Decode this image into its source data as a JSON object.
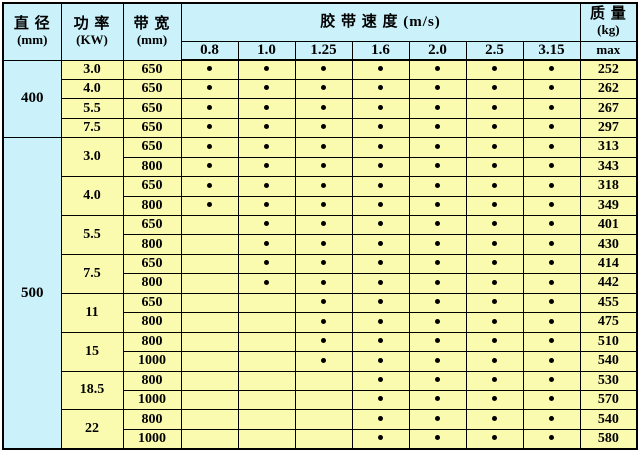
{
  "table": {
    "headers": {
      "diameter": {
        "line1": "直 径",
        "line2": "(mm)"
      },
      "power": {
        "line1": "功 率",
        "line2": "(KW)"
      },
      "belt_width": {
        "line1": "带 宽",
        "line2": "(mm)"
      },
      "speed_title": "胶 带 速 度 (m/s)",
      "speeds": [
        "0.8",
        "1.0",
        "1.25",
        "1.6",
        "2.0",
        "2.5",
        "3.15"
      ],
      "mass": {
        "line1": "质 量",
        "line2": "(kg)",
        "line3": "max"
      }
    },
    "colors": {
      "header_bg": "#cbf2fa",
      "row_bg": "#fbfbb0",
      "border": "#000000",
      "dot": "#000000"
    },
    "groups": [
      {
        "diameter": "400",
        "powers": [
          {
            "power": "3.0",
            "rows": [
              {
                "width": "650",
                "dots": [
                  1,
                  1,
                  1,
                  1,
                  1,
                  1,
                  1
                ],
                "mass": "252"
              }
            ]
          },
          {
            "power": "4.0",
            "rows": [
              {
                "width": "650",
                "dots": [
                  1,
                  1,
                  1,
                  1,
                  1,
                  1,
                  1
                ],
                "mass": "262"
              }
            ]
          },
          {
            "power": "5.5",
            "rows": [
              {
                "width": "650",
                "dots": [
                  1,
                  1,
                  1,
                  1,
                  1,
                  1,
                  1
                ],
                "mass": "267"
              }
            ]
          },
          {
            "power": "7.5",
            "rows": [
              {
                "width": "650",
                "dots": [
                  1,
                  1,
                  1,
                  1,
                  1,
                  1,
                  1
                ],
                "mass": "297"
              }
            ]
          }
        ]
      },
      {
        "diameter": "500",
        "powers": [
          {
            "power": "3.0",
            "rows": [
              {
                "width": "650",
                "dots": [
                  1,
                  1,
                  1,
                  1,
                  1,
                  1,
                  1
                ],
                "mass": "313"
              },
              {
                "width": "800",
                "dots": [
                  1,
                  1,
                  1,
                  1,
                  1,
                  1,
                  1
                ],
                "mass": "343"
              }
            ]
          },
          {
            "power": "4.0",
            "rows": [
              {
                "width": "650",
                "dots": [
                  1,
                  1,
                  1,
                  1,
                  1,
                  1,
                  1
                ],
                "mass": "318"
              },
              {
                "width": "800",
                "dots": [
                  1,
                  1,
                  1,
                  1,
                  1,
                  1,
                  1
                ],
                "mass": "349"
              }
            ]
          },
          {
            "power": "5.5",
            "rows": [
              {
                "width": "650",
                "dots": [
                  0,
                  1,
                  1,
                  1,
                  1,
                  1,
                  1
                ],
                "mass": "401"
              },
              {
                "width": "800",
                "dots": [
                  0,
                  1,
                  1,
                  1,
                  1,
                  1,
                  1
                ],
                "mass": "430"
              }
            ]
          },
          {
            "power": "7.5",
            "rows": [
              {
                "width": "650",
                "dots": [
                  0,
                  1,
                  1,
                  1,
                  1,
                  1,
                  1
                ],
                "mass": "414"
              },
              {
                "width": "800",
                "dots": [
                  0,
                  1,
                  1,
                  1,
                  1,
                  1,
                  1
                ],
                "mass": "442"
              }
            ]
          },
          {
            "power": "11",
            "rows": [
              {
                "width": "650",
                "dots": [
                  0,
                  0,
                  1,
                  1,
                  1,
                  1,
                  1
                ],
                "mass": "455"
              },
              {
                "width": "800",
                "dots": [
                  0,
                  0,
                  1,
                  1,
                  1,
                  1,
                  1
                ],
                "mass": "475"
              }
            ]
          },
          {
            "power": "15",
            "rows": [
              {
                "width": "800",
                "dots": [
                  0,
                  0,
                  1,
                  1,
                  1,
                  1,
                  1
                ],
                "mass": "510"
              },
              {
                "width": "1000",
                "dots": [
                  0,
                  0,
                  1,
                  1,
                  1,
                  1,
                  1
                ],
                "mass": "540"
              }
            ]
          },
          {
            "power": "18.5",
            "rows": [
              {
                "width": "800",
                "dots": [
                  0,
                  0,
                  0,
                  1,
                  1,
                  1,
                  1
                ],
                "mass": "530"
              },
              {
                "width": "1000",
                "dots": [
                  0,
                  0,
                  0,
                  1,
                  1,
                  1,
                  1
                ],
                "mass": "570"
              }
            ]
          },
          {
            "power": "22",
            "rows": [
              {
                "width": "800",
                "dots": [
                  0,
                  0,
                  0,
                  1,
                  1,
                  1,
                  1
                ],
                "mass": "540"
              },
              {
                "width": "1000",
                "dots": [
                  0,
                  0,
                  0,
                  1,
                  1,
                  1,
                  1
                ],
                "mass": "580"
              }
            ]
          }
        ]
      }
    ]
  }
}
